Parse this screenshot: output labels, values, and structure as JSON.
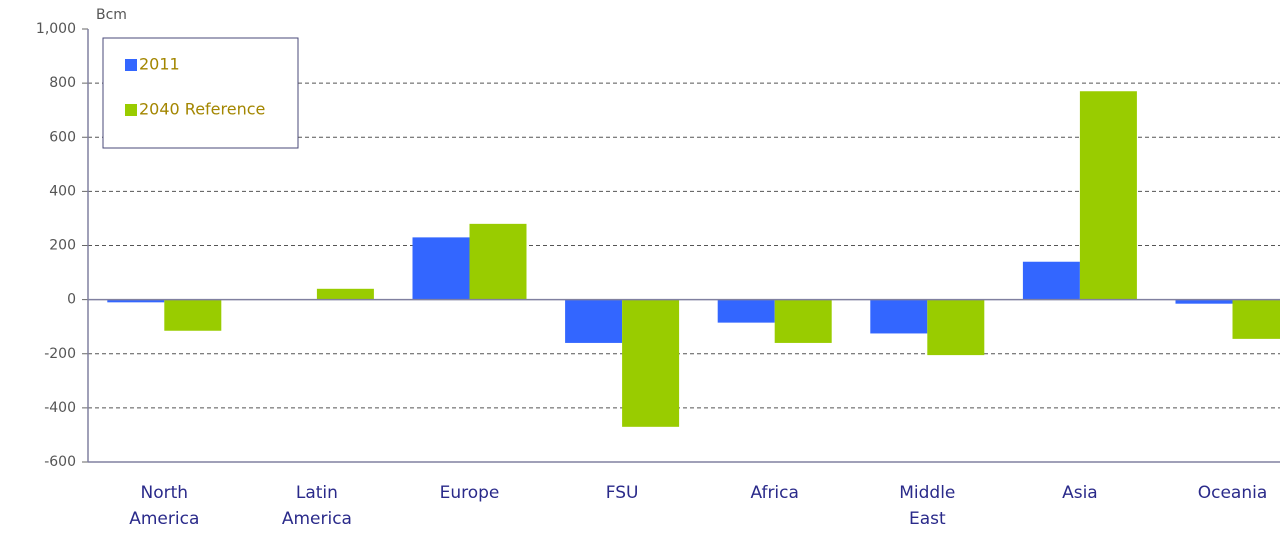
{
  "chart_data": {
    "type": "bar",
    "unit_label": "Bcm",
    "categories": [
      "North America",
      "Latin America",
      "Europe",
      "FSU",
      "Africa",
      "Middle East",
      "Asia",
      "Oceania"
    ],
    "series": [
      {
        "name": "2011",
        "color": "#3366ff",
        "values": [
          -10,
          0,
          230,
          -160,
          -85,
          -125,
          140,
          -15
        ]
      },
      {
        "name": "2040 Reference",
        "color": "#99cc00",
        "values": [
          -115,
          40,
          280,
          -470,
          -160,
          -205,
          770,
          -145
        ]
      }
    ],
    "ylim": [
      -600,
      1000
    ],
    "yticks": [
      -600,
      -400,
      -200,
      0,
      200,
      400,
      600,
      800,
      {
        "value": 1000,
        "label": "1,000"
      }
    ],
    "grid": true,
    "legend": "top-left"
  }
}
